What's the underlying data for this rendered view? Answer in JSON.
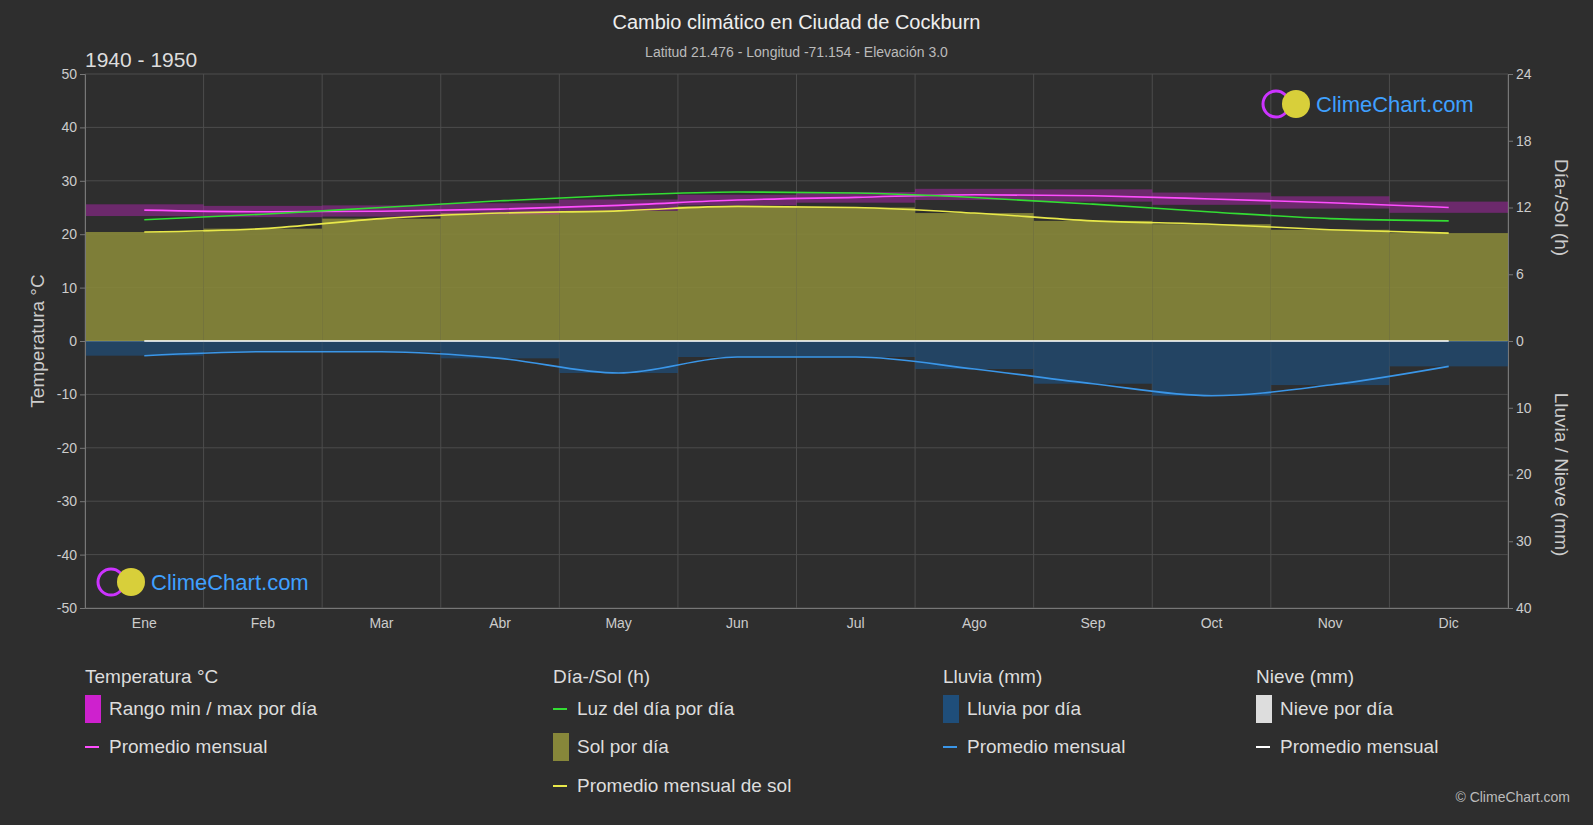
{
  "chart_data": {
    "type": "climate",
    "title": "Cambio climático en Ciudad de Cockburn",
    "subtitle": "Latitud 21.476 - Longitud -71.154 - Elevación 3.0",
    "annotations": [
      {
        "text": "1940 - 1950"
      },
      {
        "text": "ClimeChart.com"
      },
      {
        "text": "ClimeChart.com"
      },
      {
        "text": "© ClimeChart.com"
      }
    ],
    "categories": [
      "Ene",
      "Feb",
      "Mar",
      "Abr",
      "May",
      "Jun",
      "Jul",
      "Ago",
      "Sep",
      "Oct",
      "Nov",
      "Dic"
    ],
    "ylabel": "Temperatura °C",
    "y2label": "Día-/Sol (h)",
    "y3label": "Lluvia / Nieve (mm)",
    "ylim": [
      -50,
      50
    ],
    "yticks": [
      -50,
      -40,
      -30,
      -20,
      -10,
      0,
      10,
      20,
      30,
      40,
      50
    ],
    "y2lim": [
      0,
      24
    ],
    "y2ticks": [
      0,
      6,
      12,
      18,
      24
    ],
    "y3lim": [
      0,
      40
    ],
    "y3ticks": [
      10,
      20,
      30,
      40
    ],
    "grid": true,
    "legend": "bottom",
    "legend_groups": [
      "Temperatura °C",
      "Día-/Sol (h)",
      "Lluvia (mm)",
      "Nieve (mm)"
    ],
    "series": [
      {
        "name": "Rango min / max por día",
        "type": "band",
        "color": "#e020e0",
        "legend_group": 0,
        "values": [
          25.6,
          25.3,
          25.4,
          25.8,
          26.5,
          27.4,
          27.9,
          28.5,
          28.4,
          27.8,
          27.1,
          26.1
        ],
        "low": [
          23.4,
          23.2,
          23.3,
          23.7,
          24.4,
          25.4,
          25.9,
          26.4,
          26.1,
          25.5,
          24.8,
          24.0
        ]
      },
      {
        "name": "Promedio mensual",
        "type": "line",
        "color": "#ff4dff",
        "legend_group": 0,
        "values": [
          24.5,
          24.2,
          24.3,
          24.7,
          25.4,
          26.4,
          26.9,
          27.4,
          27.2,
          26.6,
          25.9,
          25.0
        ]
      },
      {
        "name": "Luz del día por día",
        "type": "line",
        "color": "#33dd33",
        "axis": "y2",
        "legend_group": 1,
        "values": [
          10.9,
          11.4,
          12.0,
          12.6,
          13.1,
          13.4,
          13.3,
          12.9,
          12.3,
          11.6,
          11.0,
          10.8
        ]
      },
      {
        "name": "Sol por día",
        "type": "bar",
        "color": "#87873a",
        "axis": "y2",
        "legend_group": 1,
        "values": [
          9.8,
          10.1,
          11.0,
          11.5,
          11.7,
          12.1,
          12.0,
          11.5,
          10.8,
          10.5,
          10.0,
          9.7
        ]
      },
      {
        "name": "Promedio mensual de sol",
        "type": "line",
        "color": "#e8e84a",
        "axis": "y2",
        "legend_group": 1,
        "values": [
          9.8,
          10.1,
          11.0,
          11.5,
          11.7,
          12.1,
          12.0,
          11.5,
          10.8,
          10.5,
          10.0,
          9.7
        ]
      },
      {
        "name": "Lluvia por día",
        "type": "bar",
        "color": "#1f4e7a",
        "axis": "y3",
        "legend_group": 2,
        "values": [
          2.2,
          1.6,
          1.6,
          2.6,
          4.8,
          2.4,
          2.4,
          4.2,
          6.4,
          8.2,
          6.6,
          3.8
        ]
      },
      {
        "name": "Promedio mensual",
        "type": "line",
        "color": "#3a96e8",
        "axis": "y3",
        "legend_group": 2,
        "values": [
          2.2,
          1.6,
          1.6,
          2.6,
          4.8,
          2.4,
          2.4,
          4.2,
          6.4,
          8.2,
          6.6,
          3.8
        ]
      },
      {
        "name": "Nieve por día",
        "type": "bar",
        "color": "#dddddd",
        "axis": "y3",
        "legend_group": 3,
        "values": [
          0,
          0,
          0,
          0,
          0,
          0,
          0,
          0,
          0,
          0,
          0,
          0
        ]
      },
      {
        "name": "Promedio mensual",
        "type": "line",
        "color": "#ffffff",
        "axis": "y3",
        "legend_group": 3,
        "values": [
          0,
          0,
          0,
          0,
          0,
          0,
          0,
          0,
          0,
          0,
          0,
          0
        ]
      }
    ]
  }
}
